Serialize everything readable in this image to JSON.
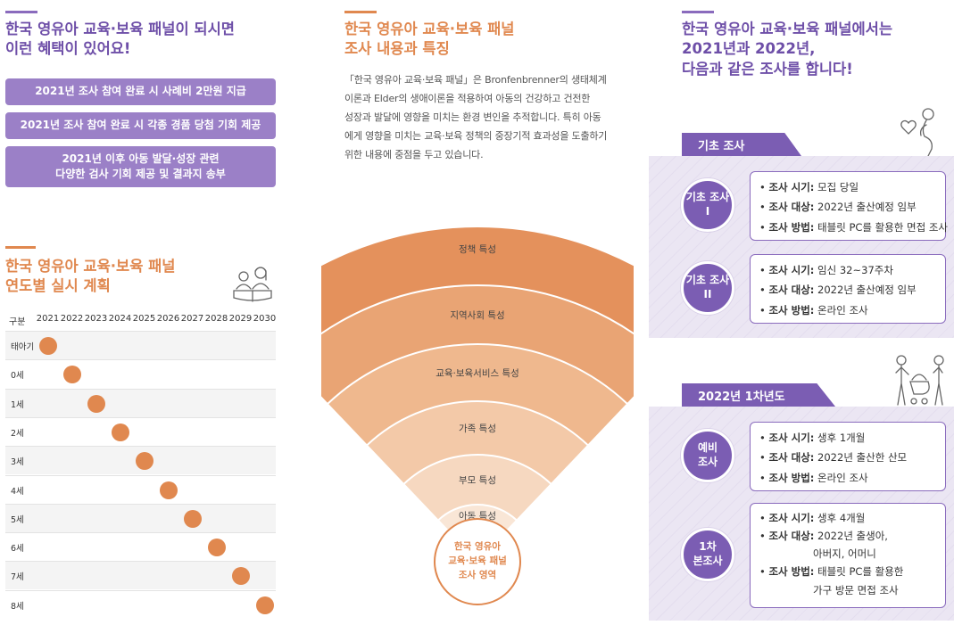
{
  "left": {
    "benefits_title": [
      "한국 영유아 교육·보육 패널이 되시면",
      "이런 혜택이 있어요!"
    ],
    "benefits": [
      [
        "2021년 조사 참여 완료 시 사례비 2만원 지급"
      ],
      [
        "2021년 조사 참여 완료 시 각종 경품 당첨 기회 제공"
      ],
      [
        "2021년 이후 아동 발달·성장 관련",
        "다양한 검사 기회 제공 및 결과지 송부"
      ]
    ],
    "plan_title": [
      "한국 영유아 교육·보육 패널",
      "연도별 실시 계획"
    ],
    "plan_header_age": "구분",
    "plan_years": [
      "2021",
      "2022",
      "2023",
      "2024",
      "2025",
      "2026",
      "2027",
      "2028",
      "2029",
      "2030"
    ],
    "plan_rows": [
      {
        "age": "태아기",
        "year_index": 0
      },
      {
        "age": "0세",
        "year_index": 1
      },
      {
        "age": "1세",
        "year_index": 2
      },
      {
        "age": "2세",
        "year_index": 3
      },
      {
        "age": "3세",
        "year_index": 4
      },
      {
        "age": "4세",
        "year_index": 5
      },
      {
        "age": "5세",
        "year_index": 6
      },
      {
        "age": "6세",
        "year_index": 7
      },
      {
        "age": "7세",
        "year_index": 8
      },
      {
        "age": "8세",
        "year_index": 9
      }
    ],
    "reading-icon": "reading-people-icon"
  },
  "middle": {
    "title": [
      "한국 영유아 교육·보육 패널",
      "조사 내용과 특징"
    ],
    "paragraph": [
      "「한국 영유아 교육·보육 패널」은 Bronfenbrenner의 생태체계",
      "이론과 Elder의 생애이론을 적용하여 아동의 건강하고 건전한",
      "성장과 발달에 영향을 미치는 환경 변인을 추적합니다. 특히 아동",
      "에게 영향을 미치는 교육·보육 정책의 중장기적 효과성을 도출하기",
      "위한 내용에 중점을 두고 있습니다."
    ],
    "fan_layers": [
      "정책 특성",
      "지역사회 특성",
      "교육·보육서비스 특성",
      "가족 특성",
      "부모 특성",
      "아동 특성"
    ],
    "core": [
      "한국 영유아",
      "교육·보육 패널",
      "조사 영역"
    ]
  },
  "right": {
    "title": [
      "한국 영유아 교육·보육 패널에서는",
      "2021년과 2022년,",
      "다음과 같은 조사를 합니다!"
    ],
    "sections": [
      {
        "tab": "기초 조사",
        "surveys": [
          {
            "label": [
              "기초 조사",
              "I"
            ],
            "items": [
              {
                "key": "조사 시기:",
                "val": [
                  "모집 당일"
                ]
              },
              {
                "key": "조사 대상:",
                "val": [
                  "2022년 출산예정 임부"
                ]
              },
              {
                "key": "조사 방법:",
                "val": [
                  "태블릿 PC를 활용한 면접 조사"
                ]
              }
            ]
          },
          {
            "label": [
              "기초 조사",
              "II"
            ],
            "items": [
              {
                "key": "조사 시기:",
                "val": [
                  "임신 32~37주차"
                ]
              },
              {
                "key": "조사 대상:",
                "val": [
                  "2022년 출산예정 임부"
                ]
              },
              {
                "key": "조사 방법:",
                "val": [
                  "온라인 조사"
                ]
              }
            ]
          }
        ]
      },
      {
        "tab": "2022년 1차년도",
        "surveys": [
          {
            "label": [
              "예비",
              "조사"
            ],
            "items": [
              {
                "key": "조사 시기:",
                "val": [
                  "생후 1개월"
                ]
              },
              {
                "key": "조사 대상:",
                "val": [
                  "2022년 출산한 산모"
                ]
              },
              {
                "key": "조사 방법:",
                "val": [
                  "온라인 조사"
                ]
              }
            ]
          },
          {
            "label": [
              "1차",
              "본조사"
            ],
            "items": [
              {
                "key": "조사 시기:",
                "val": [
                  "생후 4개월"
                ]
              },
              {
                "key": "조사 대상:",
                "val": [
                  "2022년 출생아,",
                  "아버지, 어머니"
                ]
              },
              {
                "key": "조사 방법:",
                "val": [
                  "태블릿 PC를 활용한",
                  "가구 방문 면접 조사"
                ]
              }
            ]
          }
        ]
      }
    ],
    "icons": [
      "pregnant-woman-icon",
      "parents-with-stroller-icon"
    ]
  },
  "colors": {
    "purple": "#7b5db3",
    "light_purple": "#9b80c7",
    "orange": "#e0884f",
    "panel_bg": "#ebe6f3"
  }
}
